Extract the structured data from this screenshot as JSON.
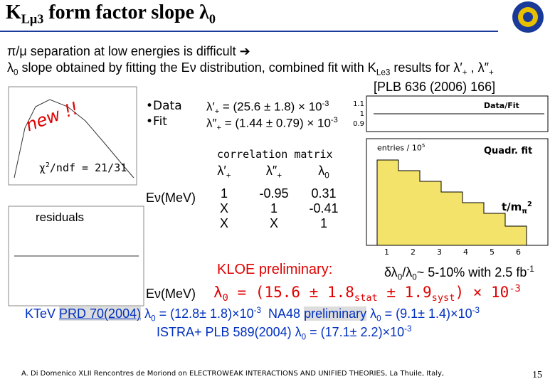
{
  "header": {
    "title": [
      "K",
      "Lμ3",
      " form factor slope λ",
      "0"
    ]
  },
  "intro": {
    "line1": "π/μ separation at low energies is difficult ➔",
    "line2": [
      "λ",
      "0",
      " slope obtained by fitting the E",
      "ν",
      " distribution, combined fit with K",
      "Le3",
      " results for λ′",
      "+",
      " , λ″",
      "+"
    ],
    "reference": "[PLB 636 (2006) 166]"
  },
  "left_plot": {
    "new_label": "new !!",
    "legend": [
      "•Data",
      "•Fit"
    ],
    "chi2": [
      "χ",
      "2",
      "/ndf = 21/31"
    ],
    "residuals": "residuals",
    "x_label_top": "Eν(MeV)",
    "x_label_bottom": "Eν(MeV)"
  },
  "fit_results": {
    "lambda_prime": [
      "λ′",
      "+",
      " = (25.6 ± 1.8) × 10",
      "-3"
    ],
    "lambda_double_prime": [
      "λ″",
      "+",
      " = (1.44 ± 0.79) × 10",
      "-3"
    ]
  },
  "correlation": {
    "title": "correlation matrix",
    "headers": [
      [
        "λ′",
        "+"
      ],
      [
        "λ″",
        "+"
      ],
      [
        "λ",
        "0"
      ]
    ],
    "rows": [
      [
        "1",
        "-0.95",
        "0.31"
      ],
      [
        "X",
        "1",
        "-0.41"
      ],
      [
        "X",
        "X",
        "1"
      ]
    ]
  },
  "right_plot": {
    "ratio_label": "Data/Fit",
    "ratio_ticks": [
      "1.1",
      "1",
      "0.9"
    ],
    "entries_label": [
      "entries / 10",
      "5"
    ],
    "fit_label": "Quadr. fit",
    "x_label": [
      "t/m",
      "π",
      "2"
    ],
    "x_ticks": [
      "1",
      "2",
      "3",
      "4",
      "5",
      "6"
    ]
  },
  "kloe": {
    "label": "KLOE preliminary:",
    "precision": [
      "δλ",
      "0",
      "/λ",
      "0",
      "~ 5-10% with 2.5 fb",
      "-1"
    ],
    "result": [
      "λ",
      "0",
      " = (15.6 ± 1.8",
      "stat",
      " ± 1.9",
      "syst",
      ") × 10",
      "-3"
    ]
  },
  "comparison": {
    "ktev": [
      "KTeV ",
      "PRD 70(2004)",
      "  λ",
      "0",
      " = (12.8± 1.8)×10",
      "-3"
    ],
    "na48": [
      "NA48 ",
      "preliminary",
      "  λ",
      "0",
      " = (9.1± 1.4)×10",
      "-3"
    ],
    "istra": [
      "ISTRA+ PLB 589(2004)  λ",
      "0",
      " = (17.1± 2.2)×10",
      "-3"
    ]
  },
  "footer": {
    "text": "A. Di Domenico  XLII Rencontres de Moriond on ELECTROWEAK INTERACTIONS AND UNIFIED THEORIES, La Thuile, Italy,",
    "page": "15"
  }
}
